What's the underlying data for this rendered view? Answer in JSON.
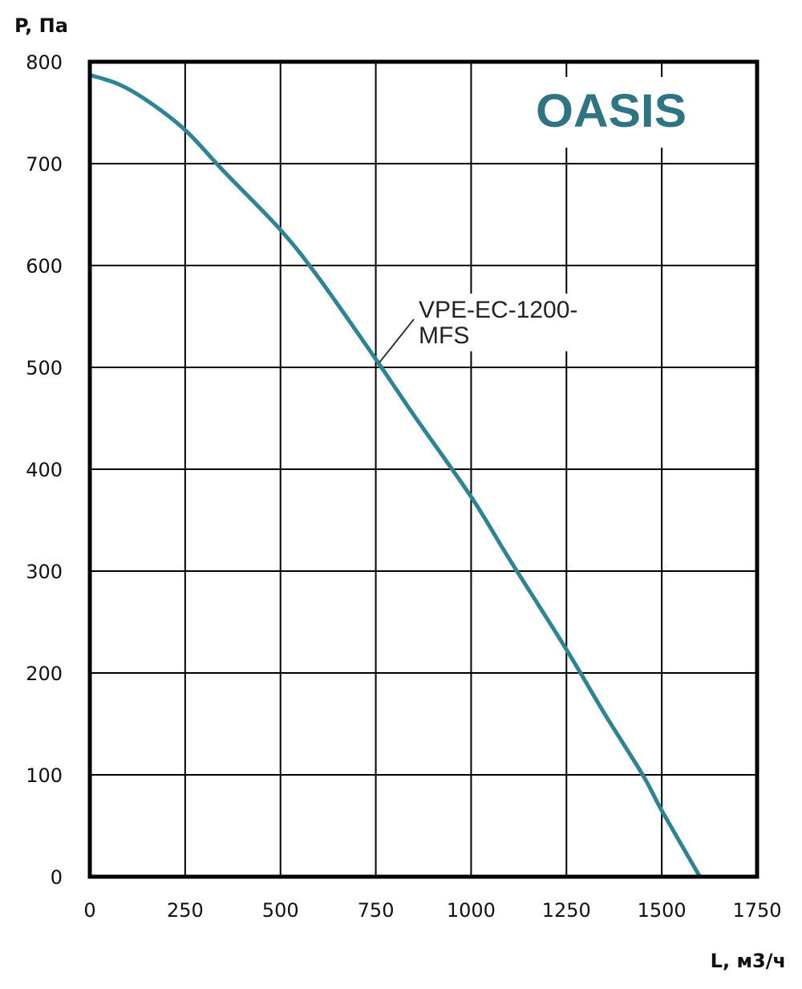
{
  "brand": {
    "text": "OASIS",
    "color": "#2e7482"
  },
  "chart_data": {
    "type": "line",
    "title": "",
    "xlabel": "L, м3/ч",
    "ylabel": "P, Па",
    "xlim": [
      0,
      1750
    ],
    "ylim": [
      0,
      800
    ],
    "x_ticks": [
      "0",
      "250",
      "500",
      "750",
      "1000",
      "1250",
      "1500",
      "1750"
    ],
    "y_ticks": [
      "0",
      "100",
      "200",
      "300",
      "400",
      "500",
      "600",
      "700",
      "800"
    ],
    "grid": true,
    "series_color": "#2e8394",
    "series": [
      {
        "name": "VPE-EC-1200-MFS",
        "label_lines": [
          "VPE-EC-1200-",
          "MFS"
        ],
        "x": [
          0,
          75,
          150,
          250,
          350,
          500,
          600,
          750,
          850,
          1000,
          1100,
          1250,
          1350,
          1450,
          1500,
          1600
        ],
        "y": [
          787,
          778,
          762,
          733,
          693,
          635,
          588,
          508,
          453,
          373,
          312,
          223,
          160,
          100,
          65,
          0
        ]
      }
    ]
  }
}
